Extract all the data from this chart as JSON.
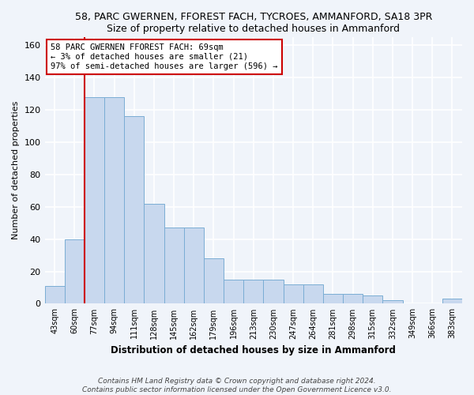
{
  "title1": "58, PARC GWERNEN, FFOREST FACH, TYCROES, AMMANFORD, SA18 3PR",
  "title2": "Size of property relative to detached houses in Ammanford",
  "xlabel": "Distribution of detached houses by size in Ammanford",
  "ylabel": "Number of detached properties",
  "bar_labels": [
    "43sqm",
    "60sqm",
    "77sqm",
    "94sqm",
    "111sqm",
    "128sqm",
    "145sqm",
    "162sqm",
    "179sqm",
    "196sqm",
    "213sqm",
    "230sqm",
    "247sqm",
    "264sqm",
    "281sqm",
    "298sqm",
    "315sqm",
    "332sqm",
    "349sqm",
    "366sqm",
    "383sqm"
  ],
  "bar_values": [
    11,
    40,
    128,
    128,
    116,
    62,
    47,
    47,
    28,
    15,
    15,
    15,
    12,
    12,
    6,
    6,
    5,
    2,
    0,
    0,
    3
  ],
  "bar_color": "#c8d8ee",
  "bar_edge_color": "#7aadd4",
  "subject_line_color": "#cc0000",
  "annotation_text": "58 PARC GWERNEN FFOREST FACH: 69sqm\n← 3% of detached houses are smaller (21)\n97% of semi-detached houses are larger (596) →",
  "annotation_box_color": "#ffffff",
  "annotation_box_edge": "#cc0000",
  "ylim": [
    0,
    165
  ],
  "yticks": [
    0,
    20,
    40,
    60,
    80,
    100,
    120,
    140,
    160
  ],
  "footer": "Contains HM Land Registry data © Crown copyright and database right 2024.\nContains public sector information licensed under the Open Government Licence v3.0.",
  "bg_color": "#f0f4fa",
  "grid_color": "#ffffff",
  "title_fontsize": 9,
  "xlabel_fontsize": 8.5,
  "ylabel_fontsize": 8
}
